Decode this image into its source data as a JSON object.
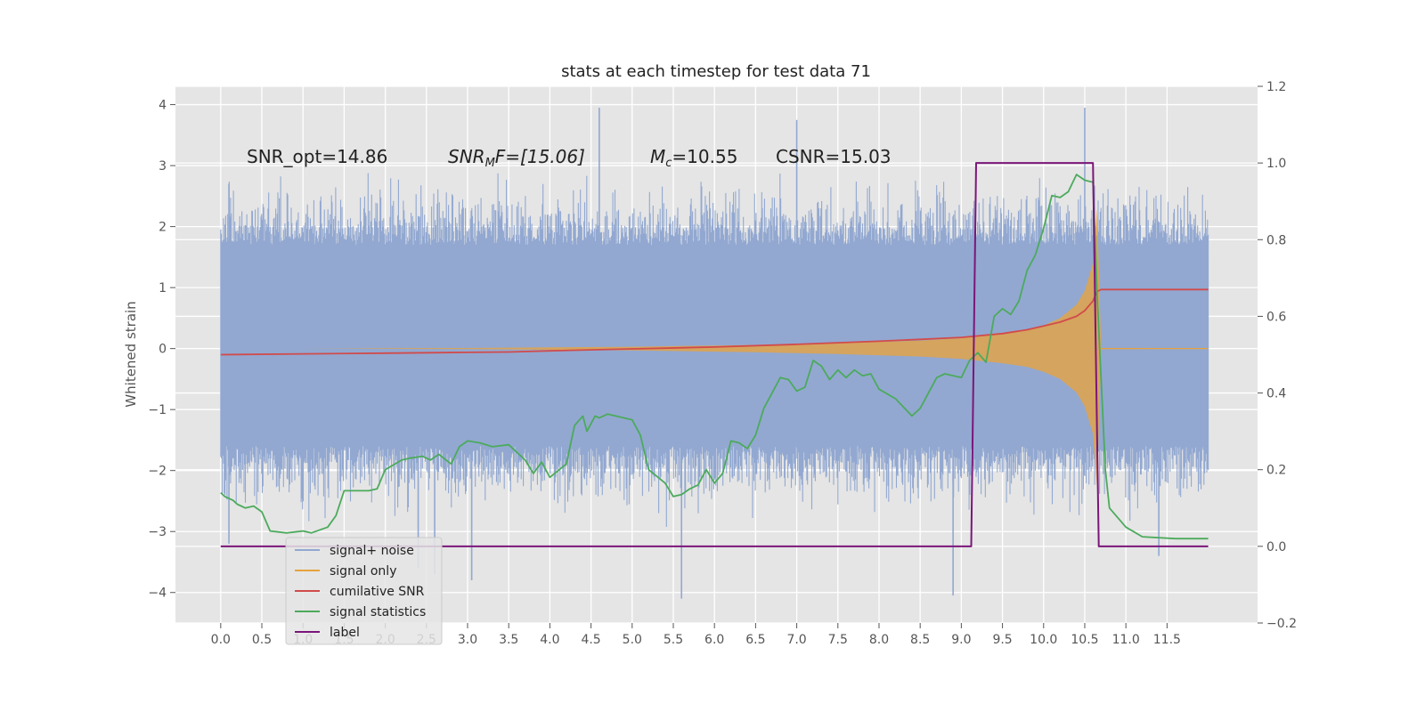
{
  "chart_data": {
    "type": "line",
    "title": "stats at each timestep for test data 71",
    "ylabel": "Whitened strain",
    "y2label": "",
    "xlim": [
      -0.55,
      12.6
    ],
    "ylim": [
      -4.5,
      4.3
    ],
    "y2lim": [
      -0.2,
      1.2
    ],
    "xticks": [
      0.0,
      0.5,
      1.0,
      1.5,
      2.0,
      2.5,
      3.0,
      3.5,
      4.0,
      4.5,
      5.0,
      5.5,
      6.0,
      6.5,
      7.0,
      7.5,
      8.0,
      8.5,
      9.0,
      9.5,
      10.0,
      10.5,
      11.0,
      11.5
    ],
    "xtick_labels": [
      "0.0",
      "0.5",
      "1.0",
      "1.5",
      "2.0",
      "2.5",
      "3.0",
      "3.5",
      "4.0",
      "4.5",
      "5.0",
      "5.5",
      "6.0",
      "6.5",
      "7.0",
      "7.5",
      "8.0",
      "8.5",
      "9.0",
      "9.5",
      "10.0",
      "10.5",
      "11.0",
      "11.5"
    ],
    "yticks": [
      -4,
      -3,
      -2,
      -1,
      0,
      1,
      2,
      3,
      4
    ],
    "ytick_labels": [
      "−4",
      "−3",
      "−2",
      "−1",
      "0",
      "1",
      "2",
      "3",
      "4"
    ],
    "y2ticks": [
      -0.2,
      0.0,
      0.2,
      0.4,
      0.6,
      0.8,
      1.0,
      1.2
    ],
    "y2tick_labels": [
      "−0.2",
      "0.0",
      "0.2",
      "0.4",
      "0.6",
      "0.8",
      "1.0",
      "1.2"
    ],
    "grid": true,
    "legend_position": "lower-left",
    "annotations": {
      "snr_opt": "SNR_opt=14.86",
      "snr_mf_prefix": "SNR",
      "snr_mf_sub": "M",
      "snr_mf_suffix": "F=[15.06]",
      "mc_prefix": "M",
      "mc_sub": "c",
      "mc_suffix": "=10.55",
      "csnr": "CSNR=15.03"
    },
    "series": [
      {
        "name": "signal+ noise",
        "axis": "left",
        "color": "#92a8d1",
        "style": "noise-band",
        "x_range": [
          0.0,
          12.0
        ],
        "typical_amplitude": 2.0,
        "extreme_values": [
          {
            "x": 0.1,
            "y": 2.7
          },
          {
            "x": 0.1,
            "y": -3.2
          },
          {
            "x": 2.4,
            "y": -3.6
          },
          {
            "x": 2.6,
            "y": -3.7
          },
          {
            "x": 3.05,
            "y": -3.8
          },
          {
            "x": 4.6,
            "y": 3.95
          },
          {
            "x": 5.6,
            "y": -4.1
          },
          {
            "x": 7.0,
            "y": 3.75
          },
          {
            "x": 8.9,
            "y": -4.05
          },
          {
            "x": 10.5,
            "y": 3.95
          },
          {
            "x": 11.4,
            "y": -3.4
          }
        ]
      },
      {
        "name": "signal only",
        "axis": "left",
        "color": "#e8a33d",
        "style": "chirp-envelope",
        "points": [
          [
            0.0,
            0.0
          ],
          [
            1.0,
            0.0
          ],
          [
            2.0,
            0.005
          ],
          [
            3.0,
            0.01
          ],
          [
            4.0,
            0.02
          ],
          [
            5.0,
            0.03
          ],
          [
            6.0,
            0.05
          ],
          [
            6.5,
            0.06
          ],
          [
            7.0,
            0.075
          ],
          [
            7.5,
            0.09
          ],
          [
            8.0,
            0.11
          ],
          [
            8.5,
            0.13
          ],
          [
            9.0,
            0.17
          ],
          [
            9.5,
            0.24
          ],
          [
            9.8,
            0.3
          ],
          [
            10.0,
            0.38
          ],
          [
            10.2,
            0.5
          ],
          [
            10.4,
            0.72
          ],
          [
            10.5,
            0.95
          ],
          [
            10.6,
            1.4
          ],
          [
            10.65,
            2.3
          ],
          [
            10.7,
            0.01
          ],
          [
            12.0,
            0.0
          ]
        ]
      },
      {
        "name": "cumilative SNR",
        "axis": "right",
        "color": "#d14b4b",
        "points": [
          [
            0.0,
            0.5
          ],
          [
            1.0,
            0.502
          ],
          [
            2.0,
            0.504
          ],
          [
            3.0,
            0.506
          ],
          [
            3.5,
            0.507
          ],
          [
            4.0,
            0.51
          ],
          [
            5.0,
            0.515
          ],
          [
            6.0,
            0.52
          ],
          [
            7.0,
            0.527
          ],
          [
            8.0,
            0.535
          ],
          [
            8.5,
            0.54
          ],
          [
            9.0,
            0.545
          ],
          [
            9.5,
            0.555
          ],
          [
            9.8,
            0.565
          ],
          [
            10.0,
            0.575
          ],
          [
            10.2,
            0.585
          ],
          [
            10.4,
            0.6
          ],
          [
            10.5,
            0.615
          ],
          [
            10.6,
            0.64
          ],
          [
            10.65,
            0.665
          ],
          [
            10.7,
            0.67
          ],
          [
            12.0,
            0.67
          ]
        ]
      },
      {
        "name": "signal statistics",
        "axis": "right",
        "color": "#4caa5c",
        "points": [
          [
            0.0,
            0.14
          ],
          [
            0.05,
            0.13
          ],
          [
            0.15,
            0.12
          ],
          [
            0.2,
            0.11
          ],
          [
            0.3,
            0.1
          ],
          [
            0.4,
            0.105
          ],
          [
            0.5,
            0.09
          ],
          [
            0.6,
            0.04
          ],
          [
            0.8,
            0.035
          ],
          [
            1.0,
            0.04
          ],
          [
            1.1,
            0.035
          ],
          [
            1.3,
            0.05
          ],
          [
            1.4,
            0.08
          ],
          [
            1.5,
            0.145
          ],
          [
            1.6,
            0.145
          ],
          [
            1.8,
            0.145
          ],
          [
            1.9,
            0.15
          ],
          [
            2.0,
            0.2
          ],
          [
            2.2,
            0.225
          ],
          [
            2.3,
            0.23
          ],
          [
            2.45,
            0.235
          ],
          [
            2.55,
            0.225
          ],
          [
            2.65,
            0.24
          ],
          [
            2.8,
            0.215
          ],
          [
            2.9,
            0.26
          ],
          [
            3.0,
            0.275
          ],
          [
            3.15,
            0.27
          ],
          [
            3.3,
            0.26
          ],
          [
            3.5,
            0.265
          ],
          [
            3.6,
            0.245
          ],
          [
            3.7,
            0.225
          ],
          [
            3.8,
            0.19
          ],
          [
            3.9,
            0.22
          ],
          [
            4.0,
            0.18
          ],
          [
            4.2,
            0.215
          ],
          [
            4.3,
            0.315
          ],
          [
            4.4,
            0.34
          ],
          [
            4.45,
            0.3
          ],
          [
            4.55,
            0.34
          ],
          [
            4.6,
            0.335
          ],
          [
            4.7,
            0.345
          ],
          [
            4.8,
            0.34
          ],
          [
            5.0,
            0.33
          ],
          [
            5.1,
            0.29
          ],
          [
            5.2,
            0.2
          ],
          [
            5.4,
            0.165
          ],
          [
            5.5,
            0.13
          ],
          [
            5.6,
            0.135
          ],
          [
            5.7,
            0.15
          ],
          [
            5.8,
            0.16
          ],
          [
            5.9,
            0.2
          ],
          [
            6.0,
            0.165
          ],
          [
            6.1,
            0.19
          ],
          [
            6.2,
            0.275
          ],
          [
            6.3,
            0.27
          ],
          [
            6.4,
            0.255
          ],
          [
            6.5,
            0.29
          ],
          [
            6.6,
            0.36
          ],
          [
            6.7,
            0.4
          ],
          [
            6.8,
            0.44
          ],
          [
            6.9,
            0.435
          ],
          [
            7.0,
            0.405
          ],
          [
            7.1,
            0.415
          ],
          [
            7.2,
            0.485
          ],
          [
            7.3,
            0.47
          ],
          [
            7.4,
            0.435
          ],
          [
            7.5,
            0.46
          ],
          [
            7.6,
            0.44
          ],
          [
            7.7,
            0.46
          ],
          [
            7.8,
            0.445
          ],
          [
            7.9,
            0.45
          ],
          [
            8.0,
            0.41
          ],
          [
            8.2,
            0.385
          ],
          [
            8.4,
            0.34
          ],
          [
            8.5,
            0.36
          ],
          [
            8.7,
            0.44
          ],
          [
            8.8,
            0.45
          ],
          [
            9.0,
            0.44
          ],
          [
            9.1,
            0.485
          ],
          [
            9.2,
            0.505
          ],
          [
            9.3,
            0.48
          ],
          [
            9.4,
            0.6
          ],
          [
            9.5,
            0.62
          ],
          [
            9.6,
            0.605
          ],
          [
            9.7,
            0.64
          ],
          [
            9.8,
            0.72
          ],
          [
            9.9,
            0.76
          ],
          [
            10.0,
            0.83
          ],
          [
            10.1,
            0.915
          ],
          [
            10.2,
            0.91
          ],
          [
            10.3,
            0.925
          ],
          [
            10.4,
            0.97
          ],
          [
            10.5,
            0.955
          ],
          [
            10.6,
            0.95
          ],
          [
            10.65,
            0.66
          ],
          [
            10.75,
            0.2
          ],
          [
            10.8,
            0.1
          ],
          [
            11.0,
            0.05
          ],
          [
            11.2,
            0.025
          ],
          [
            11.6,
            0.02
          ],
          [
            12.0,
            0.02
          ]
        ]
      },
      {
        "name": "label",
        "axis": "right",
        "color": "#7b1679",
        "points": [
          [
            0.0,
            0.0
          ],
          [
            9.12,
            0.0
          ],
          [
            9.18,
            1.0
          ],
          [
            10.6,
            1.0
          ],
          [
            10.67,
            0.0
          ],
          [
            12.0,
            0.0
          ]
        ]
      }
    ]
  }
}
